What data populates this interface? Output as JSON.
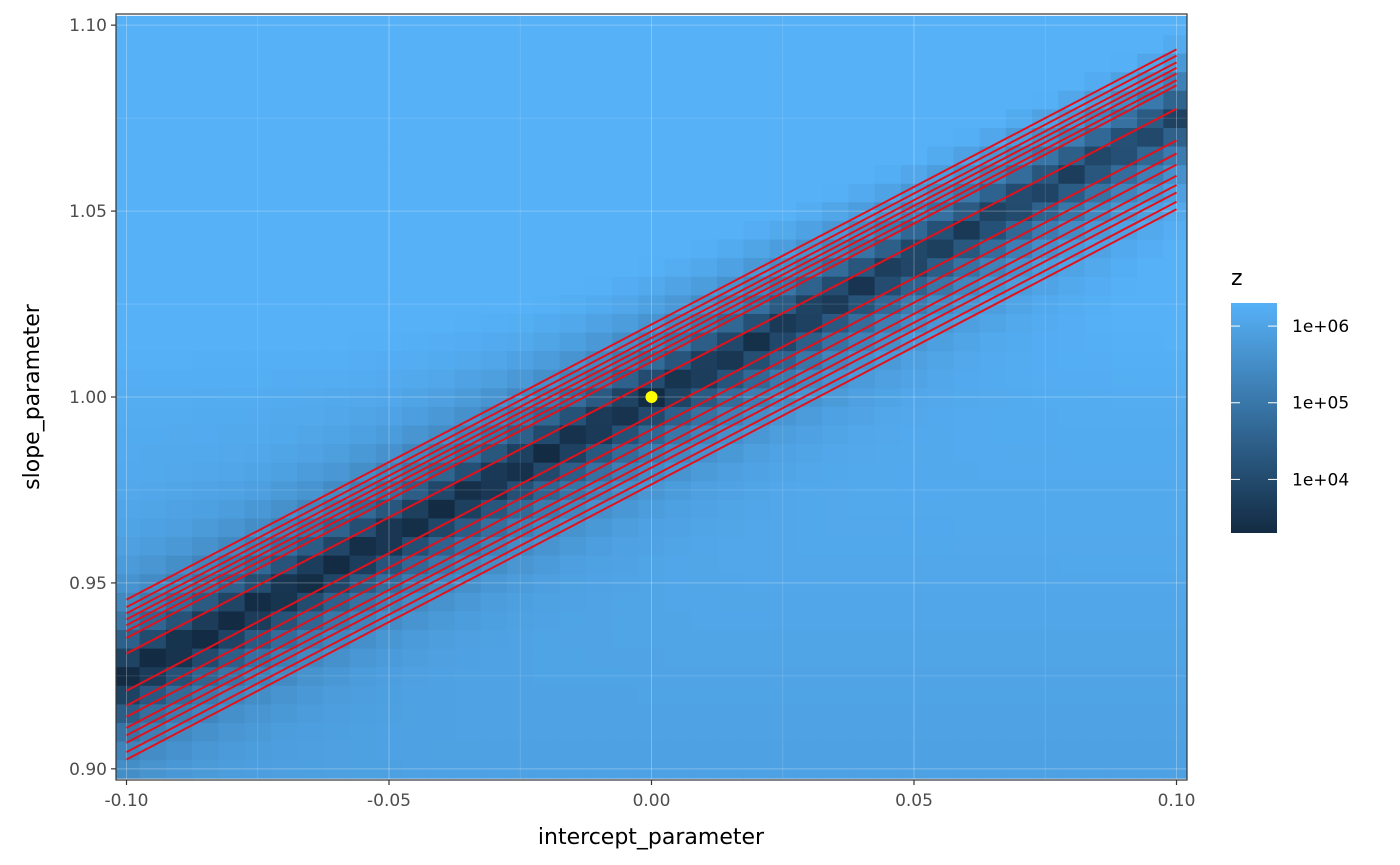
{
  "chart_data": {
    "type": "heatmap",
    "xlabel": "intercept_parameter",
    "ylabel": "slope_parameter",
    "xlim": [
      -0.102,
      0.102
    ],
    "ylim": [
      0.897,
      1.103
    ],
    "x_ticks": [
      -0.1,
      -0.05,
      0.0,
      0.05,
      0.1
    ],
    "x_tick_labels": [
      "-0.10",
      "-0.05",
      "0.00",
      "0.05",
      "0.10"
    ],
    "y_ticks": [
      0.9,
      0.95,
      1.0,
      1.05,
      1.1
    ],
    "y_tick_labels": [
      "0.90",
      "0.95",
      "1.00",
      "1.05",
      "1.10"
    ],
    "grid": true,
    "heatmap": {
      "x_range": [
        -0.1,
        0.1
      ],
      "y_range": [
        0.9,
        1.1
      ],
      "nx": 41,
      "ny": 41,
      "fill": "z",
      "scale": "log10",
      "valley": "slope = 1 + 0.75 * intercept",
      "z_min_approx": 2000,
      "z_max_approx": 2000000
    },
    "legend": {
      "title": "z",
      "position": "right",
      "breaks": [
        10000,
        100000,
        1000000
      ],
      "labels": [
        "1e+04",
        "1e+05",
        "1e+06"
      ],
      "color_low": "#132b43",
      "color_high": "#56b1f7"
    },
    "red_lines": {
      "color": "#e3111b",
      "x_start": -0.1,
      "x_end": 0.1,
      "start_y": [
        0.9455,
        0.9435,
        0.9418,
        0.9402,
        0.9386,
        0.937,
        0.9352,
        0.931,
        0.921,
        0.917,
        0.914,
        0.911,
        0.909,
        0.907,
        0.9045,
        0.9025
      ],
      "end_y": [
        1.0935,
        1.0918,
        1.09,
        1.0885,
        1.087,
        1.0852,
        1.0838,
        1.0775,
        1.069,
        1.0655,
        1.0625,
        1.0595,
        1.057,
        1.055,
        1.0525,
        1.0505
      ]
    },
    "point": {
      "x": 0.0,
      "y": 1.0,
      "color": "#ffff00"
    }
  }
}
